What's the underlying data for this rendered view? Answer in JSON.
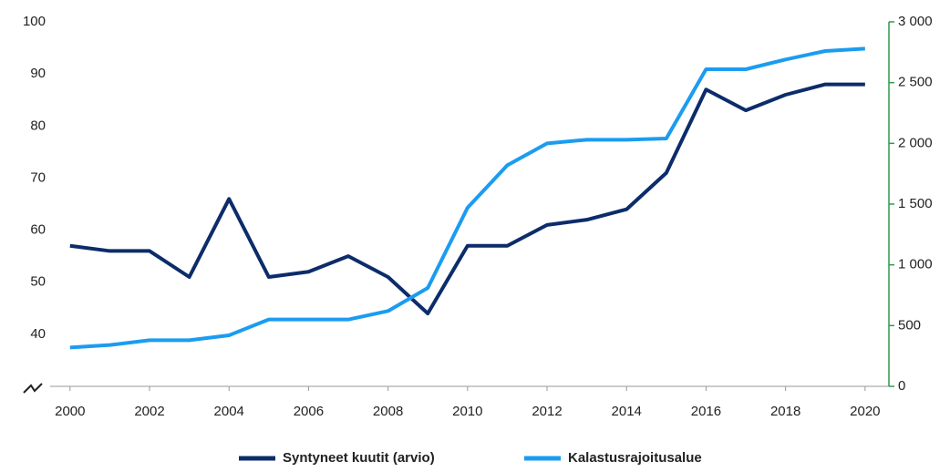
{
  "chart_data": {
    "type": "line",
    "x": [
      2000,
      2001,
      2002,
      2003,
      2004,
      2005,
      2006,
      2007,
      2008,
      2009,
      2010,
      2011,
      2012,
      2013,
      2014,
      2015,
      2016,
      2017,
      2018,
      2019,
      2020
    ],
    "series": [
      {
        "name": "Syntyneet kuutit (arvio)",
        "color": "#0c2c6a",
        "axis": "y",
        "values": [
          57,
          56,
          56,
          51,
          66,
          51,
          52,
          55,
          51,
          44,
          57,
          57,
          61,
          62,
          64,
          71,
          87,
          83,
          86,
          88,
          88
        ]
      },
      {
        "name": "Kalastusrajoitusalue",
        "color": "#1b9cf0",
        "axis": "y2",
        "values": [
          320,
          340,
          380,
          380,
          420,
          550,
          550,
          550,
          620,
          810,
          1470,
          1820,
          2000,
          2030,
          2030,
          2040,
          2610,
          2610,
          2690,
          2760,
          2780
        ]
      }
    ],
    "xlim": [
      1999.5,
      2020.6
    ],
    "xticks": [
      2000,
      2002,
      2004,
      2006,
      2008,
      2010,
      2012,
      2014,
      2016,
      2018,
      2020
    ],
    "ylim": [
      30,
      100
    ],
    "yticks": [
      40,
      50,
      60,
      70,
      80,
      90,
      100
    ],
    "y2lim": [
      0,
      3000
    ],
    "y2ticks": [
      0,
      500,
      {
        "value": 1000,
        "label": "1 000"
      },
      {
        "value": 1500,
        "label": "1 500"
      },
      {
        "value": 2000,
        "label": "2 000"
      },
      {
        "value": 2500,
        "label": "2 500"
      },
      {
        "value": 3000,
        "label": "3 000"
      }
    ],
    "y2color": "#2e9b4c",
    "grid": false,
    "legend": "bottom"
  }
}
